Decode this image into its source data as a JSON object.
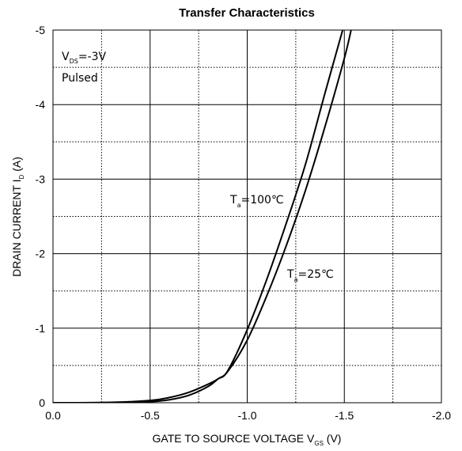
{
  "chart_data": {
    "type": "line",
    "title": "Transfer Characteristics",
    "xlabel": "GATE TO SOURCE VOLTAGE V",
    "xlabel_sub": "GS",
    "xlabel_unit": " (V)",
    "ylabel": "DRAIN CURRENT I",
    "ylabel_sub": "D",
    "ylabel_unit": " (A)",
    "xlim": [
      0.0,
      -2.0
    ],
    "ylim": [
      0,
      -5
    ],
    "x_ticks": [
      0.0,
      -0.5,
      -1.0,
      -1.5,
      -2.0
    ],
    "x_tick_labels": [
      "0.0",
      "-0.5",
      "-1.0",
      "-1.5",
      "-2.0"
    ],
    "y_ticks": [
      0,
      -1,
      -2,
      -3,
      -4,
      -5
    ],
    "y_tick_labels": [
      "0",
      "-1",
      "-2",
      "-3",
      "-4",
      "-5"
    ],
    "grid": true,
    "conditions": {
      "vds_prefix": "V",
      "vds_sub": "DS",
      "vds_value": "=-3V",
      "mode": "Pulsed"
    },
    "series": [
      {
        "name_main": "T",
        "name_sub": "a",
        "name_value": "=100℃",
        "x": [
          0.0,
          -0.3,
          -0.5,
          -0.6,
          -0.7,
          -0.8,
          -0.85,
          -0.9,
          -1.0,
          -1.1,
          -1.2,
          -1.3,
          -1.4,
          -1.5
        ],
        "y": [
          0,
          -0.005,
          -0.03,
          -0.07,
          -0.14,
          -0.25,
          -0.32,
          -0.43,
          -0.98,
          -1.65,
          -2.4,
          -3.2,
          -4.15,
          -5.08
        ]
      },
      {
        "name_main": "T",
        "name_sub": "a",
        "name_value": "=25℃",
        "x": [
          0.0,
          -0.3,
          -0.5,
          -0.6,
          -0.7,
          -0.8,
          -0.85,
          -0.9,
          -1.0,
          -1.1,
          -1.2,
          -1.3,
          -1.4,
          -1.5,
          -1.54
        ],
        "y": [
          0,
          -0.002,
          -0.015,
          -0.04,
          -0.1,
          -0.22,
          -0.32,
          -0.42,
          -0.84,
          -1.43,
          -2.1,
          -2.85,
          -3.7,
          -4.62,
          -5.06
        ]
      }
    ]
  }
}
